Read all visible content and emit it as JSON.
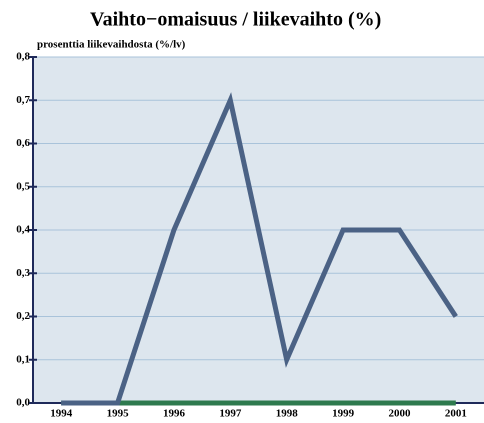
{
  "chart_data": {
    "type": "line",
    "title": "Vaihto−omaisuus / liikevaihto (%)",
    "subtitle": "prosenttia liikevaihdosta (%/lv)",
    "categories": [
      "1994",
      "1995",
      "1996",
      "1997",
      "1998",
      "1999",
      "2000",
      "2001"
    ],
    "series": [
      {
        "color": "#2e7a4e",
        "values": [
          0,
          0,
          0,
          0,
          0,
          0,
          0,
          0
        ]
      },
      {
        "color": "#4b6285",
        "values": [
          0,
          0,
          0.4,
          0.7,
          0.1,
          0.4,
          0.4,
          0.2
        ]
      }
    ],
    "ylim": [
      0,
      0.8
    ],
    "yticks": [
      {
        "value": 0,
        "label": "0,0"
      },
      {
        "value": 0.1,
        "label": "0,1"
      },
      {
        "value": 0.2,
        "label": "0,2"
      },
      {
        "value": 0.3,
        "label": "0,3"
      },
      {
        "value": 0.4,
        "label": "0,4"
      },
      {
        "value": 0.5,
        "label": "0,5"
      },
      {
        "value": 0.6,
        "label": "0,6"
      },
      {
        "value": 0.7,
        "label": "0,7"
      },
      {
        "value": 0.8,
        "label": "0,8"
      }
    ],
    "grid": true
  }
}
